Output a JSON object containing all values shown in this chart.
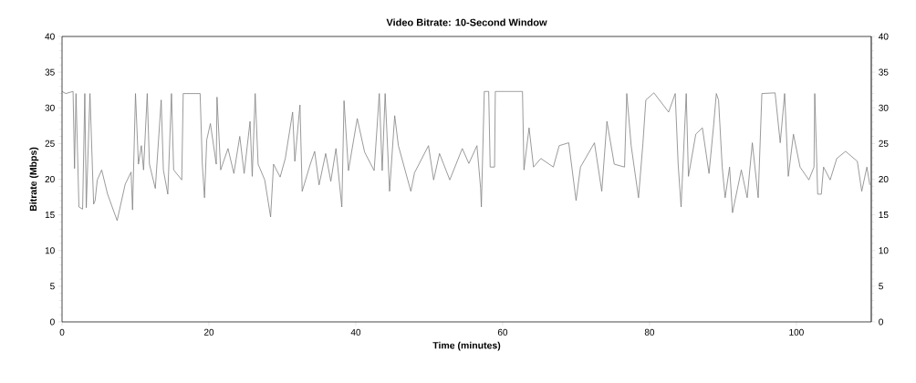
{
  "chart_data": {
    "type": "line",
    "title": "Video Bitrate: 10-Second Window",
    "xlabel": "Time (minutes)",
    "ylabel": "Bitrate (Mbps)",
    "x": [
      0,
      0.5,
      1.5,
      1.7,
      1.9,
      2.3,
      2.8,
      3.1,
      3.3,
      3.8,
      4.3,
      4.5,
      4.8,
      5.4,
      6.2,
      7.5,
      8.6,
      9.4,
      9.6,
      10,
      10.4,
      10.8,
      11.1,
      11.6,
      11.9,
      12.7,
      13.5,
      13.8,
      14.4,
      14.9,
      15.2,
      16.3,
      16.5,
      18.8,
      19.1,
      19.4,
      19.7,
      20.2,
      21,
      21.1,
      21.6,
      22.6,
      23.4,
      24.2,
      24.8,
      25.6,
      25.9,
      26.3,
      26.7,
      27.6,
      28.4,
      28.8,
      29.7,
      30.4,
      31.4,
      31.7,
      32.4,
      32.7,
      33.8,
      34.4,
      35,
      35.9,
      36.6,
      37.3,
      38.1,
      38.4,
      39,
      40.2,
      41.2,
      42.5,
      43.2,
      43.6,
      44,
      44.6,
      45.3,
      45.8,
      47.5,
      48,
      49.9,
      50.6,
      51.4,
      52.8,
      54.5,
      55.4,
      56.5,
      57,
      57.1,
      57.5,
      58.1,
      58.3,
      58.9,
      59,
      62.7,
      62.9,
      63.6,
      64.2,
      65.2,
      66.9,
      67.7,
      69,
      70,
      70.6,
      72.5,
      73.5,
      74.2,
      75.2,
      76.6,
      76.9,
      77.5,
      78.5,
      79.1,
      79.5,
      80.6,
      82.6,
      83.5,
      83.9,
      84.3,
      85,
      85.3,
      86.3,
      87.2,
      88.1,
      88.7,
      89.1,
      89.4,
      89.9,
      90.3,
      90.9,
      91.3,
      92.5,
      93.3,
      94,
      94.8,
      95.3,
      97.1,
      97.8,
      98.4,
      98.9,
      99.6,
      100.5,
      101.7,
      102.4,
      102.5,
      102.9,
      103.4,
      103.7,
      104.6,
      105.5,
      106.7,
      108.3,
      108.9,
      109.6,
      110
    ],
    "series": [
      {
        "color": "#808080",
        "values": [
          32.3,
          32,
          32.3,
          21.5,
          32,
          16.1,
          15.8,
          32,
          16,
          32,
          16.5,
          17,
          19.9,
          21.3,
          17.9,
          14.2,
          19.3,
          21,
          15.7,
          32,
          22.1,
          24.7,
          21.3,
          32,
          22.1,
          18.7,
          31.1,
          21.3,
          17.9,
          32,
          21.3,
          19.9,
          32,
          32,
          22.1,
          17.4,
          25.5,
          27.8,
          22.1,
          31.5,
          21.3,
          24.3,
          20.8,
          26,
          20.8,
          28.1,
          20.4,
          32,
          22.1,
          19.9,
          14.7,
          22.1,
          20.3,
          22.9,
          29.4,
          22.5,
          30.4,
          18.3,
          22.1,
          23.9,
          19.2,
          23.6,
          19.7,
          24.3,
          16.1,
          31,
          21.2,
          28.5,
          23.8,
          21.2,
          32,
          21.2,
          32,
          18.3,
          28.9,
          24.7,
          18.3,
          20.9,
          24.7,
          19.9,
          23.6,
          19.9,
          24.3,
          22.2,
          24.7,
          18.7,
          16.1,
          32.3,
          32.3,
          21.7,
          21.7,
          32.3,
          32.3,
          21.3,
          27.2,
          21.7,
          22.9,
          21.7,
          24.7,
          25.1,
          17,
          21.7,
          25.1,
          18.3,
          28.1,
          22.1,
          21.7,
          32,
          24.7,
          17.4,
          25,
          31.1,
          32.1,
          29.4,
          32,
          22.1,
          16.1,
          32,
          20.4,
          26.3,
          27.2,
          20.8,
          27.2,
          32,
          31.1,
          21.7,
          17.4,
          21.7,
          15.3,
          21.3,
          17.4,
          25.1,
          17.4,
          32,
          32.1,
          25.1,
          32,
          20.4,
          26.3,
          21.7,
          19.9,
          21.7,
          32,
          17.9,
          17.9,
          21.7,
          19.9,
          22.9,
          23.9,
          22.5,
          18.3,
          21.7,
          19.2
        ]
      }
    ],
    "xlim": [
      0,
      110.2
    ],
    "ylim": [
      0,
      40
    ],
    "xticks": [
      0,
      20,
      40,
      60,
      80,
      100
    ],
    "yticks": [
      0,
      5,
      10,
      15,
      20,
      25,
      30,
      35,
      40
    ],
    "y2lim": [
      0,
      40
    ],
    "y2ticks": [
      0,
      5,
      10,
      15,
      20,
      25,
      30,
      35,
      40
    ]
  }
}
